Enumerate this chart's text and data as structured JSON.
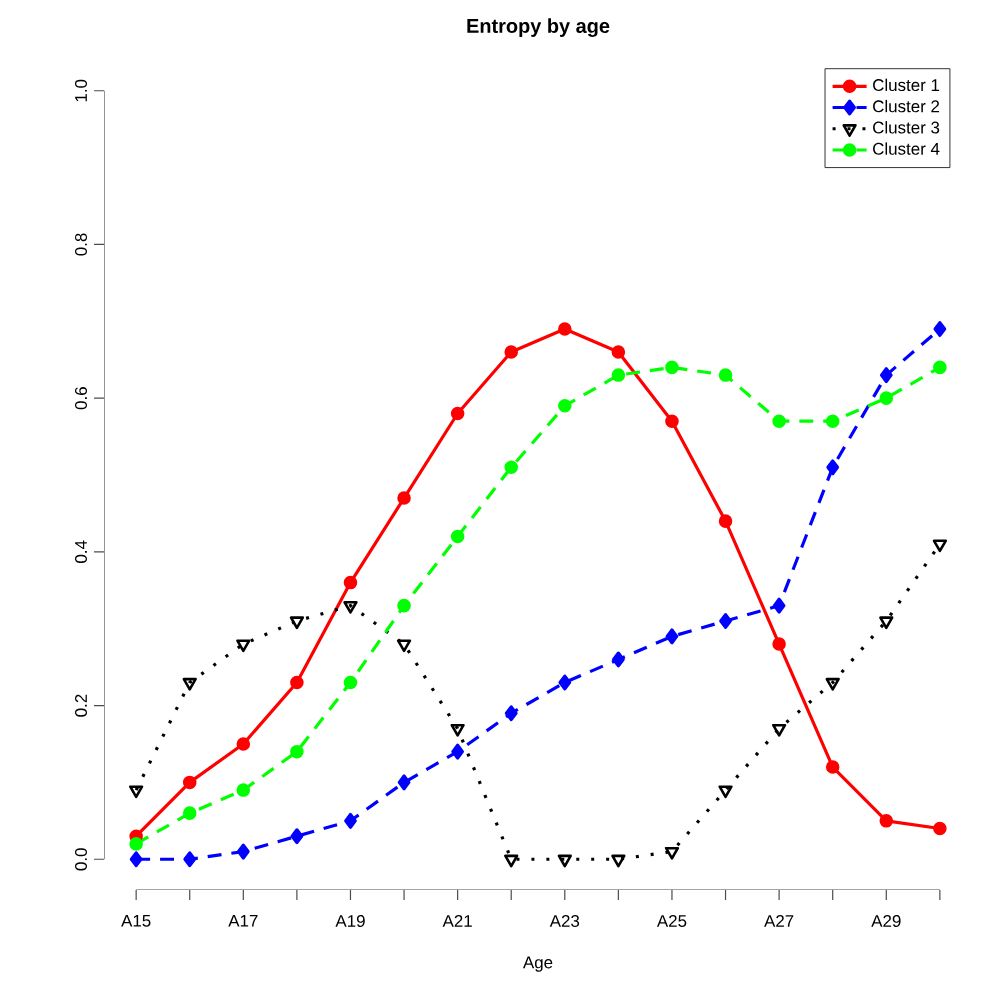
{
  "chart_data": {
    "type": "line",
    "title": "Entropy by age",
    "xlabel": "Age",
    "categories": [
      "A15",
      null,
      "A17",
      null,
      "A19",
      null,
      "A21",
      null,
      "A23",
      null,
      "A25",
      null,
      "A27",
      null,
      "A29",
      null
    ],
    "ylim": [
      0,
      1
    ],
    "yticks": [
      {
        "value": 0,
        "label": "0.0"
      },
      {
        "value": 0.2,
        "label": "0.2"
      },
      {
        "value": 0.4,
        "label": "0.4"
      },
      {
        "value": 0.6,
        "label": "0.6"
      },
      {
        "value": 0.8,
        "label": "0.8"
      },
      {
        "value": 1,
        "label": "1.0"
      }
    ],
    "grid": false,
    "legend": "top right",
    "series": [
      {
        "name": "Cluster 1",
        "color": "#ff0000",
        "marker": "circle",
        "line_style": "solid",
        "values": [
          0.03,
          0.1,
          0.15,
          0.23,
          0.36,
          0.47,
          0.58,
          0.66,
          0.69,
          0.66,
          0.57,
          0.44,
          0.28,
          0.12,
          0.05,
          0.04
        ]
      },
      {
        "name": "Cluster 2",
        "color": "#0000ff",
        "marker": "diamond",
        "line_style": "dashed",
        "values": [
          0.0,
          0.0,
          0.01,
          0.03,
          0.05,
          0.1,
          0.14,
          0.19,
          0.23,
          0.26,
          0.29,
          0.31,
          0.33,
          0.51,
          0.63,
          0.69
        ]
      },
      {
        "name": "Cluster 3",
        "color": "#000000",
        "marker": "triangle",
        "line_style": "dotted",
        "values": [
          0.09,
          0.23,
          0.28,
          0.31,
          0.33,
          0.28,
          0.17,
          0.0,
          0.0,
          0.0,
          0.01,
          0.09,
          0.17,
          0.23,
          0.31,
          0.41
        ]
      },
      {
        "name": "Cluster 4",
        "color": "#00ff00",
        "marker": "circle",
        "line_style": "dashed",
        "values": [
          0.02,
          0.06,
          0.09,
          0.14,
          0.23,
          0.33,
          0.42,
          0.51,
          0.59,
          0.63,
          0.64,
          0.63,
          0.57,
          0.57,
          0.6,
          0.64
        ]
      }
    ]
  }
}
